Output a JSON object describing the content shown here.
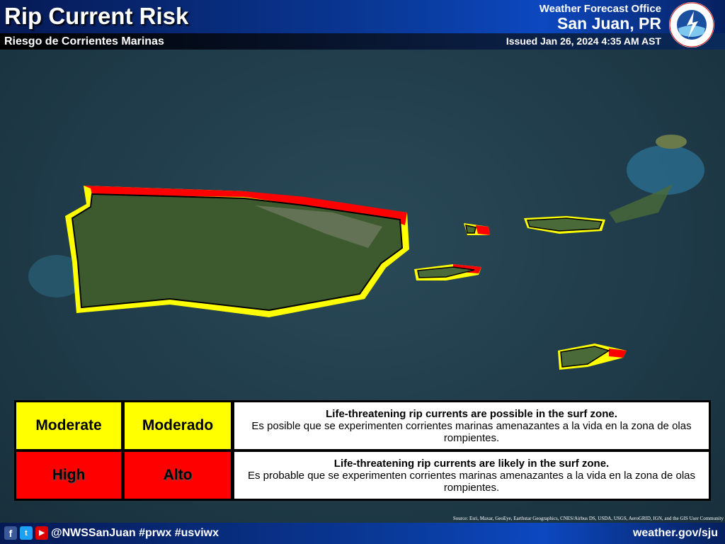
{
  "header": {
    "title": "Rip Current Risk",
    "subtitle": "Riesgo de Corrientes Marinas",
    "office_label": "Weather Forecast Office",
    "office": "San Juan, PR",
    "issued": "Issued Jan 26, 2024 4:35 AM AST",
    "logo_text": "NATIONAL WEATHER SERVICE"
  },
  "colors": {
    "moderate": "#ffff00",
    "high": "#ff0000",
    "header_blue": "#0a3a9a"
  },
  "legend": [
    {
      "level_en": "Moderate",
      "level_es": "Moderado",
      "desc_en": "Life-threatening rip currents are possible in the surf zone.",
      "desc_es": "Es posible que se experimenten corrientes marinas amenazantes a la vida en la zona de olas rompientes."
    },
    {
      "level_en": "High",
      "level_es": "Alto",
      "desc_en": "Life-threatening rip currents are likely in the surf zone.",
      "desc_es": "Es probable que se experimenten corrientes marinas amenazantes a la vida en la zona de olas rompientes."
    }
  ],
  "source": "Source: Esri, Maxar, GeoEye, Earthstar Geographics, CNES/Airbus DS, USDA, USGS, AeroGRID, IGN, and the GIS User Community",
  "footer": {
    "social_icons": [
      "facebook-icon",
      "twitter-icon",
      "youtube-icon"
    ],
    "handle": "@NWSSanJuan #prwx #usviwx",
    "url": "weather.gov/sju"
  }
}
